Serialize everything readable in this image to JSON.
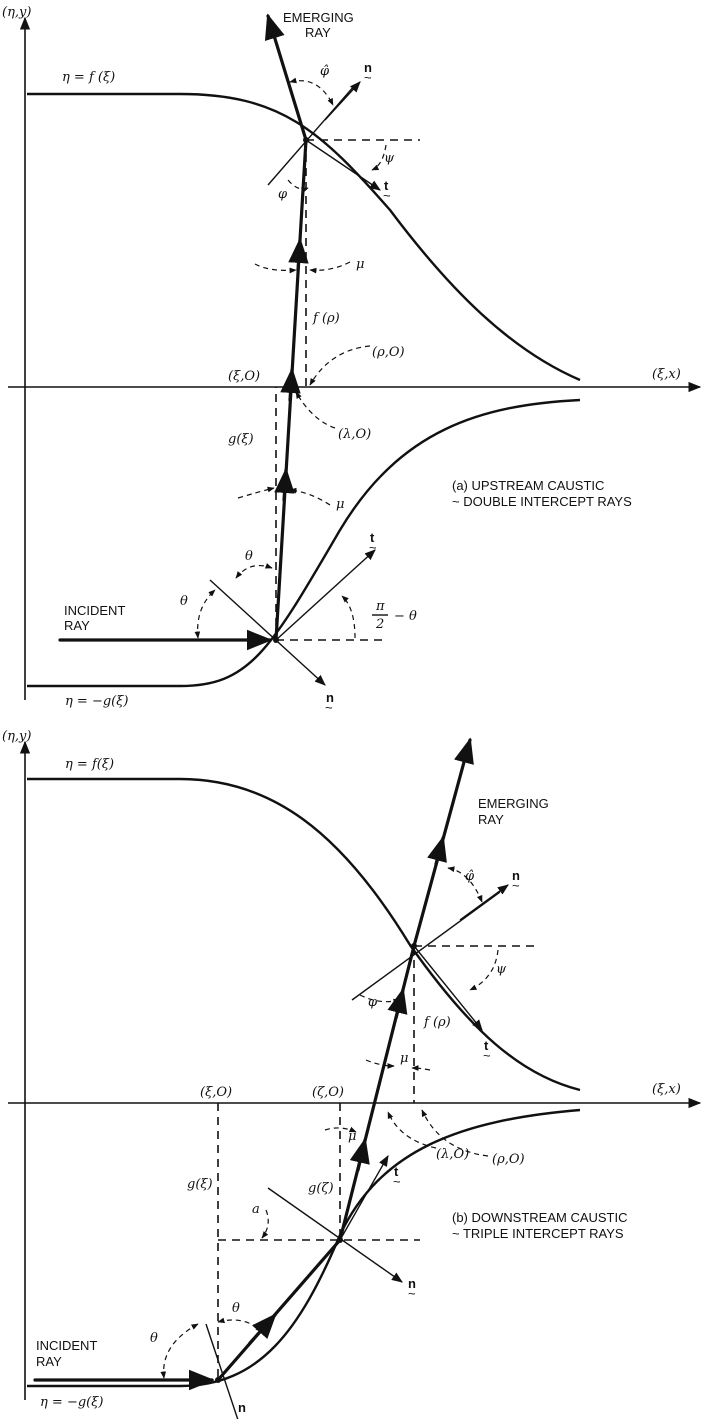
{
  "panel_a": {
    "axis_y": "(η,y)",
    "axis_x": "(ξ,x)",
    "upper_curve": "η = f (ξ)",
    "lower_curve": "η = −g(ξ)",
    "emerging": [
      "EMERGING",
      "RAY"
    ],
    "incident": [
      "INCIDENT",
      "RAY"
    ],
    "caption": [
      "(a) UPSTREAM CAUSTIC",
      "~ DOUBLE INTERCEPT RAYS"
    ],
    "pt_xi": "(ξ,O)",
    "pt_rho": "(ρ,O)",
    "pt_lambda": "(λ,O)",
    "f_rho": "f (ρ)",
    "g_xi": "g(ξ)",
    "phi_hat": "φ̂",
    "phi": "φ",
    "psi": "ψ",
    "mu": "μ",
    "theta": "θ",
    "pi2": "π",
    "pi2_den": "2",
    "pi2_rest": "− θ",
    "vec_n": "n",
    "vec_t": "t",
    "tilde": "~"
  },
  "panel_b": {
    "axis_y": "(η,y)",
    "axis_x": "(ξ,x)",
    "upper_curve": "η = f(ξ)",
    "lower_curve": "η = −g(ξ)",
    "emerging": [
      "EMERGING",
      "RAY"
    ],
    "incident": [
      "INCIDENT",
      "RAY"
    ],
    "caption": [
      "(b) DOWNSTREAM CAUSTIC",
      "~ TRIPLE INTERCEPT RAYS"
    ],
    "pt_xi": "(ξ,O)",
    "pt_zeta": "(ζ,O)",
    "pt_rho": "(ρ,O)",
    "pt_lambda": "(λ,O)",
    "f_rho": "f (ρ)",
    "g_xi": "g(ξ)",
    "g_zeta": "g(ζ)",
    "phi_hat": "φ̂",
    "phi": "φ",
    "psi": "ψ",
    "mu": "μ",
    "theta": "θ",
    "alpha": "a",
    "vec_n": "n",
    "vec_t": "t",
    "tilde": "~"
  }
}
